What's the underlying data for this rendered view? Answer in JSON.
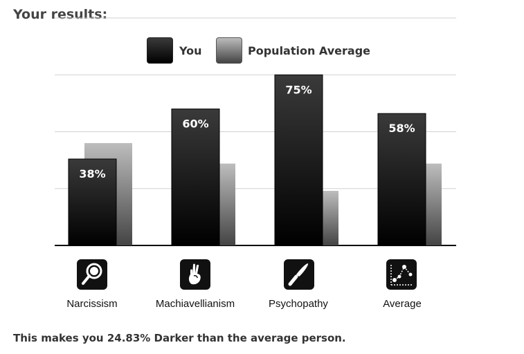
{
  "heading": "Your results:",
  "legend": {
    "you": "You",
    "population": "Population Average"
  },
  "chart_data": {
    "type": "bar",
    "categories": [
      "Narcissism",
      "Machiavellianism",
      "Psychopathy",
      "Average"
    ],
    "series": [
      {
        "name": "You",
        "values": [
          38,
          60,
          75,
          58
        ],
        "labels": [
          "38%",
          "60%",
          "75%",
          "58%"
        ]
      },
      {
        "name": "Population Average",
        "values": [
          45,
          36,
          24,
          36
        ]
      }
    ],
    "ylim": [
      0,
      100
    ],
    "grid": true,
    "legend_position": "top"
  },
  "icons": [
    "mirror-icon",
    "crossed-fingers-icon",
    "knife-icon",
    "scatter-plot-icon"
  ],
  "footer": "This makes you 24.83% Darker than the average person."
}
